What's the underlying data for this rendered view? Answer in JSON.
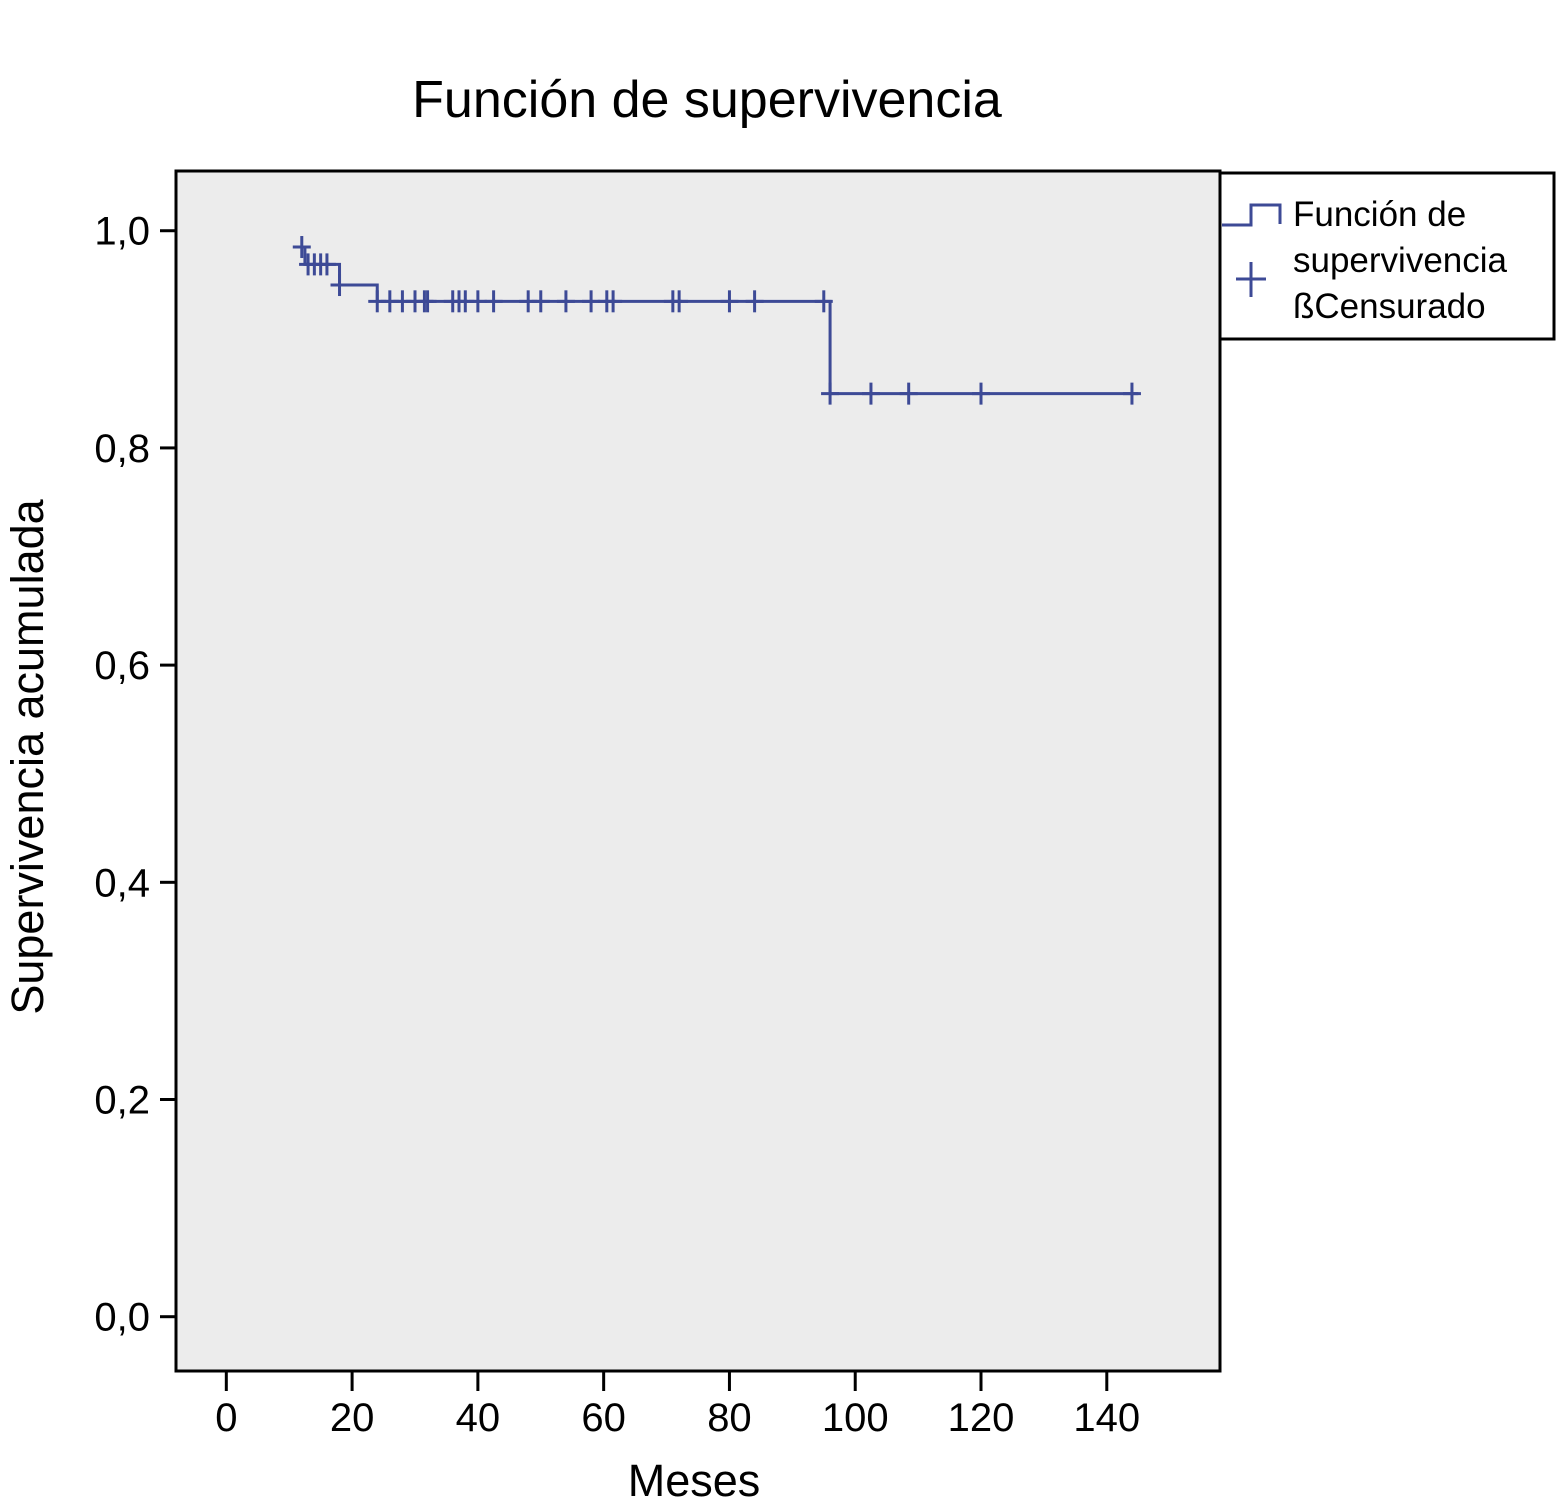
{
  "chart_data": {
    "type": "line",
    "step": true,
    "title": "Función de supervivencia",
    "xlabel": "Meses",
    "ylabel": "Supervivencia acumulada",
    "xlim": [
      -8,
      158
    ],
    "ylim": [
      -0.05,
      1.055
    ],
    "x_ticks": [
      0,
      20,
      40,
      60,
      80,
      100,
      120,
      140
    ],
    "x_tick_labels": [
      "0",
      "20",
      "40",
      "60",
      "80",
      "100",
      "120",
      "140"
    ],
    "y_ticks": [
      0.0,
      0.2,
      0.4,
      0.6,
      0.8,
      1.0
    ],
    "y_tick_labels": [
      "0,0",
      "0,2",
      "0,4",
      "0,6",
      "0,8",
      "1,0"
    ],
    "grid": false,
    "legend_position": "top-right, outside plot",
    "background": "#ececec",
    "series": [
      {
        "name": "Función de supervivencia",
        "color": "#3d4a96",
        "steps": [
          {
            "x": 11.5,
            "y": 0.985
          },
          {
            "x": 12.5,
            "y": 0.969
          },
          {
            "x": 18,
            "y": 0.95
          },
          {
            "x": 24,
            "y": 0.935
          },
          {
            "x": 96,
            "y": 0.85
          },
          {
            "x": 145,
            "y": 0.85
          }
        ]
      },
      {
        "name": "Censurado",
        "color": "#3d4a96",
        "points": [
          {
            "x": 12,
            "y": 0.985
          },
          {
            "x": 13,
            "y": 0.969
          },
          {
            "x": 14,
            "y": 0.969
          },
          {
            "x": 15,
            "y": 0.969
          },
          {
            "x": 16,
            "y": 0.969
          },
          {
            "x": 18,
            "y": 0.95
          },
          {
            "x": 24,
            "y": 0.935
          },
          {
            "x": 26,
            "y": 0.935
          },
          {
            "x": 28,
            "y": 0.935
          },
          {
            "x": 30,
            "y": 0.935
          },
          {
            "x": 31.5,
            "y": 0.935
          },
          {
            "x": 32,
            "y": 0.935
          },
          {
            "x": 36,
            "y": 0.935
          },
          {
            "x": 37,
            "y": 0.935
          },
          {
            "x": 38,
            "y": 0.935
          },
          {
            "x": 40,
            "y": 0.935
          },
          {
            "x": 42.5,
            "y": 0.935
          },
          {
            "x": 48,
            "y": 0.935
          },
          {
            "x": 50,
            "y": 0.935
          },
          {
            "x": 54,
            "y": 0.935
          },
          {
            "x": 58,
            "y": 0.935
          },
          {
            "x": 60.5,
            "y": 0.935
          },
          {
            "x": 61.5,
            "y": 0.935
          },
          {
            "x": 71,
            "y": 0.935
          },
          {
            "x": 72,
            "y": 0.935
          },
          {
            "x": 80,
            "y": 0.935
          },
          {
            "x": 84,
            "y": 0.935
          },
          {
            "x": 95,
            "y": 0.935
          },
          {
            "x": 96,
            "y": 0.85
          },
          {
            "x": 102.5,
            "y": 0.85
          },
          {
            "x": 108.5,
            "y": 0.85
          },
          {
            "x": 120,
            "y": 0.85
          },
          {
            "x": 144,
            "y": 0.85
          }
        ]
      }
    ],
    "legend": {
      "entries": [
        {
          "label_lines": [
            "Función de",
            "supervivencia"
          ],
          "symbol": "step-line"
        },
        {
          "label_lines": [
            "ßCensurado"
          ],
          "symbol": "cross"
        }
      ]
    }
  }
}
